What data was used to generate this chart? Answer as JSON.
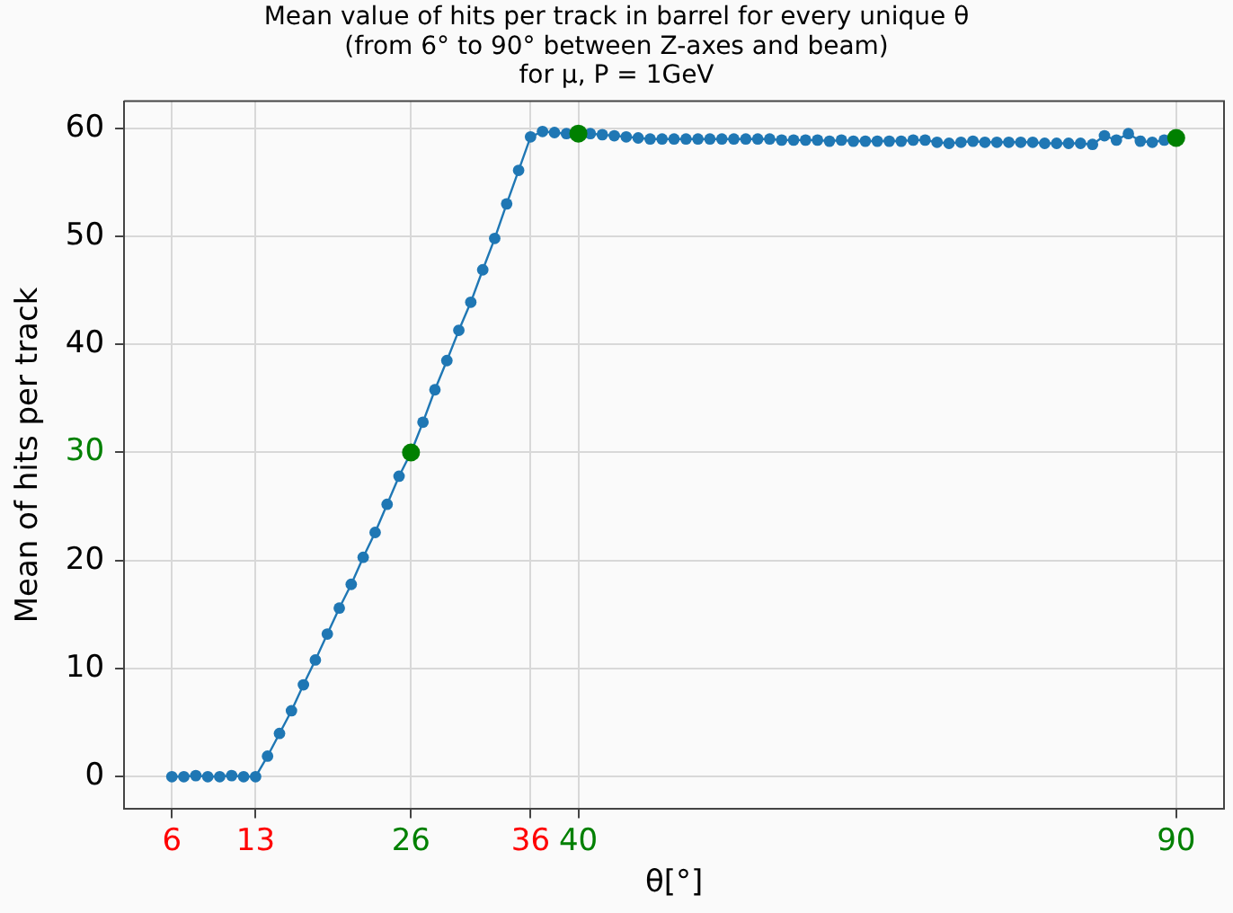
{
  "chart_data": {
    "type": "line",
    "title": "Mean value of hits per track in barrel for every unique θ\n(from 6° to 90° between Z-axes and beam)\nfor μ, P = 1GeV",
    "xlabel": "θ[°]",
    "ylabel": "Mean of hits per track",
    "x": [
      6,
      7,
      8,
      9,
      10,
      11,
      12,
      13,
      14,
      15,
      16,
      17,
      18,
      19,
      20,
      21,
      22,
      23,
      24,
      25,
      26,
      27,
      28,
      29,
      30,
      31,
      32,
      33,
      34,
      35,
      36,
      37,
      38,
      39,
      40,
      41,
      42,
      43,
      44,
      45,
      46,
      47,
      48,
      49,
      50,
      51,
      52,
      53,
      54,
      55,
      56,
      57,
      58,
      59,
      60,
      61,
      62,
      63,
      64,
      65,
      66,
      67,
      68,
      69,
      70,
      71,
      72,
      73,
      74,
      75,
      76,
      77,
      78,
      79,
      80,
      81,
      82,
      83,
      84,
      85,
      86,
      87,
      88,
      89,
      90
    ],
    "series": [
      {
        "color": "#1f77b4",
        "marker": "circle",
        "values": [
          0,
          0,
          0.1,
          0,
          0,
          0.1,
          0,
          0,
          1.9,
          4.0,
          6.1,
          8.5,
          10.8,
          13.2,
          15.6,
          17.8,
          20.3,
          22.6,
          25.2,
          27.8,
          30.0,
          32.8,
          35.8,
          38.5,
          41.3,
          43.9,
          46.9,
          49.8,
          53.0,
          56.1,
          59.2,
          59.7,
          59.6,
          59.5,
          59.5,
          59.5,
          59.4,
          59.3,
          59.2,
          59.1,
          59.0,
          59.0,
          59.0,
          59.0,
          59.0,
          59.0,
          59.0,
          59.0,
          59.0,
          59.0,
          59.0,
          58.9,
          58.9,
          58.9,
          58.9,
          58.8,
          58.9,
          58.8,
          58.8,
          58.8,
          58.8,
          58.8,
          58.9,
          58.9,
          58.7,
          58.6,
          58.7,
          58.8,
          58.7,
          58.7,
          58.7,
          58.7,
          58.7,
          58.6,
          58.6,
          58.6,
          58.6,
          58.5,
          59.3,
          58.9,
          59.5,
          58.8,
          58.7,
          58.9,
          59.1
        ]
      },
      {
        "type": "scatter",
        "color": "#008000",
        "marker": "circle",
        "x": [
          26,
          40,
          90
        ],
        "values": [
          30.0,
          59.5,
          59.1
        ]
      }
    ],
    "xlim": [
      2,
      94
    ],
    "xticks": [
      6,
      13,
      26,
      36,
      40,
      90
    ],
    "ylim": [
      -3,
      62.5
    ],
    "yticks": [
      0,
      10,
      20,
      30,
      40,
      50,
      60
    ],
    "grid": true,
    "legend": false
  }
}
